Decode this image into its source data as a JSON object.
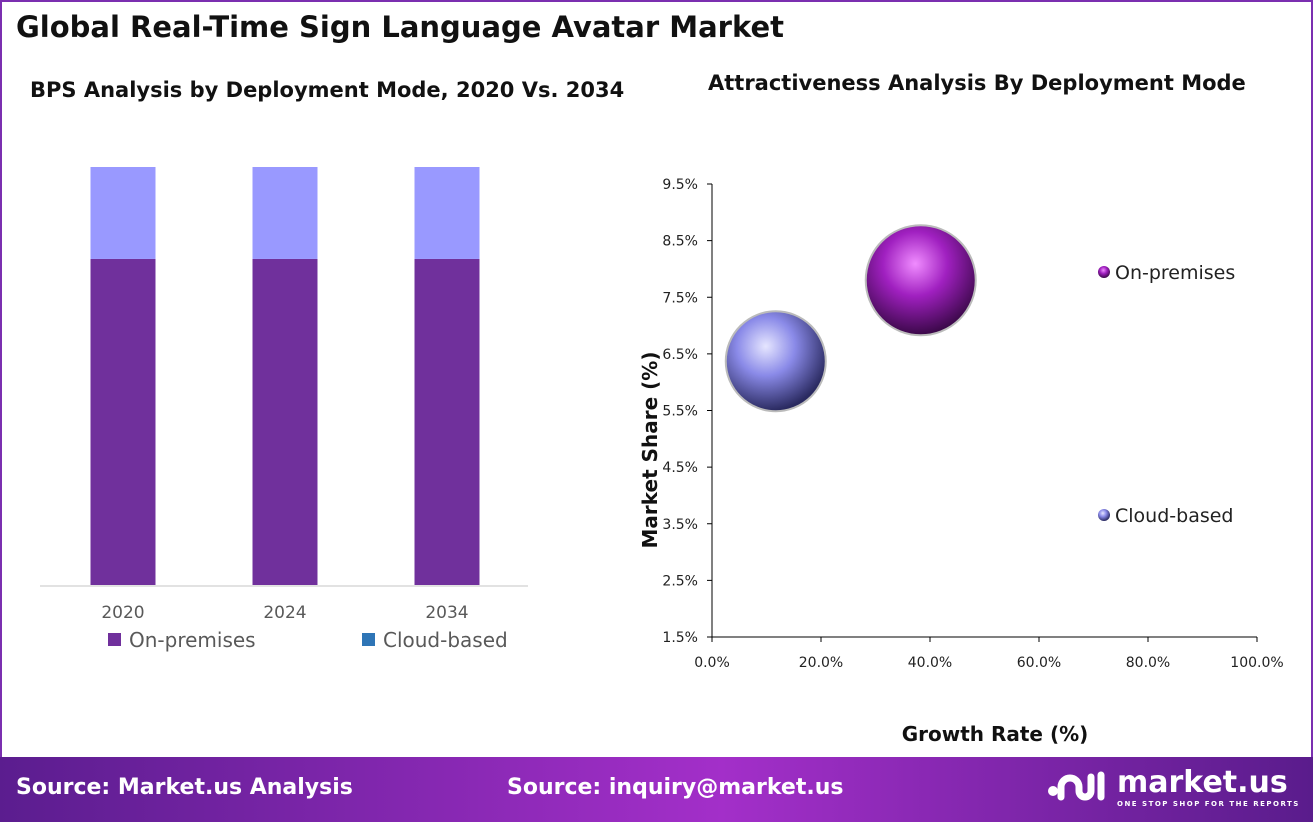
{
  "title": "Global Real-Time Sign Language Avatar Market",
  "footer": {
    "source_left": "Source: Market.us Analysis",
    "source_right": "Source: inquiry@market.us",
    "logo_name": "market.us",
    "logo_tagline": "ONE STOP SHOP FOR THE REPORTS"
  },
  "chart_data": [
    {
      "type": "bar",
      "stacked": true,
      "title": "BPS Analysis by Deployment Mode, 2020 Vs. 2034",
      "categories": [
        "2020",
        "2024",
        "2034"
      ],
      "series": [
        {
          "name": "On-premises",
          "values": [
            78,
            78,
            78
          ],
          "color": "#70309c",
          "legend_color": "#70309c"
        },
        {
          "name": "Cloud-based",
          "values": [
            22,
            22,
            22
          ],
          "color": "#9999ff",
          "legend_color": "#2e75b6"
        }
      ],
      "legend": "bottom",
      "grid": false
    },
    {
      "type": "bubble",
      "title": "Attractiveness Analysis By Deployment Mode",
      "xlabel": "Growth Rate (%)",
      "ylabel": "Market Share (%)",
      "xlim": [
        0,
        100
      ],
      "ylim": [
        1.5,
        9.5
      ],
      "xticks": [
        "0.0%",
        "20.0%",
        "40.0%",
        "60.0%",
        "80.0%",
        "100.0%"
      ],
      "yticks": [
        "1.5%",
        "2.5%",
        "3.5%",
        "4.5%",
        "5.5%",
        "6.5%",
        "7.5%",
        "8.5%",
        "9.5%"
      ],
      "series": [
        {
          "name": "On-premises",
          "x": 38.3,
          "y": 7.8,
          "color": "#a020c0"
        },
        {
          "name": "Cloud-based",
          "x": 11.7,
          "y": 6.37,
          "color": "#8a8ae8"
        }
      ],
      "legend": "right",
      "grid": false
    }
  ]
}
